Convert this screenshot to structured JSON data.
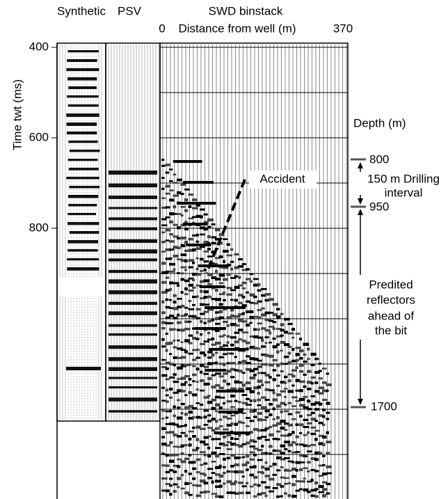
{
  "header": {
    "synthetic": "Synthetic",
    "psv": "PSV",
    "swd": "SWD binstack",
    "distance_start": "0",
    "distance_label": "Distance from well (m)",
    "distance_end": "370"
  },
  "time_axis": {
    "title": "Time twt (ms)",
    "ticks": [
      "400",
      "600",
      "800"
    ]
  },
  "depth": {
    "title": "Depth (m)",
    "labels": [
      "800",
      "950",
      "1700"
    ],
    "drilling_interval": [
      "150 m Drilling",
      "interval"
    ],
    "prediction": [
      "Predited",
      "reflectors",
      "ahead of",
      "the bit"
    ]
  },
  "annotation": "Accident"
}
